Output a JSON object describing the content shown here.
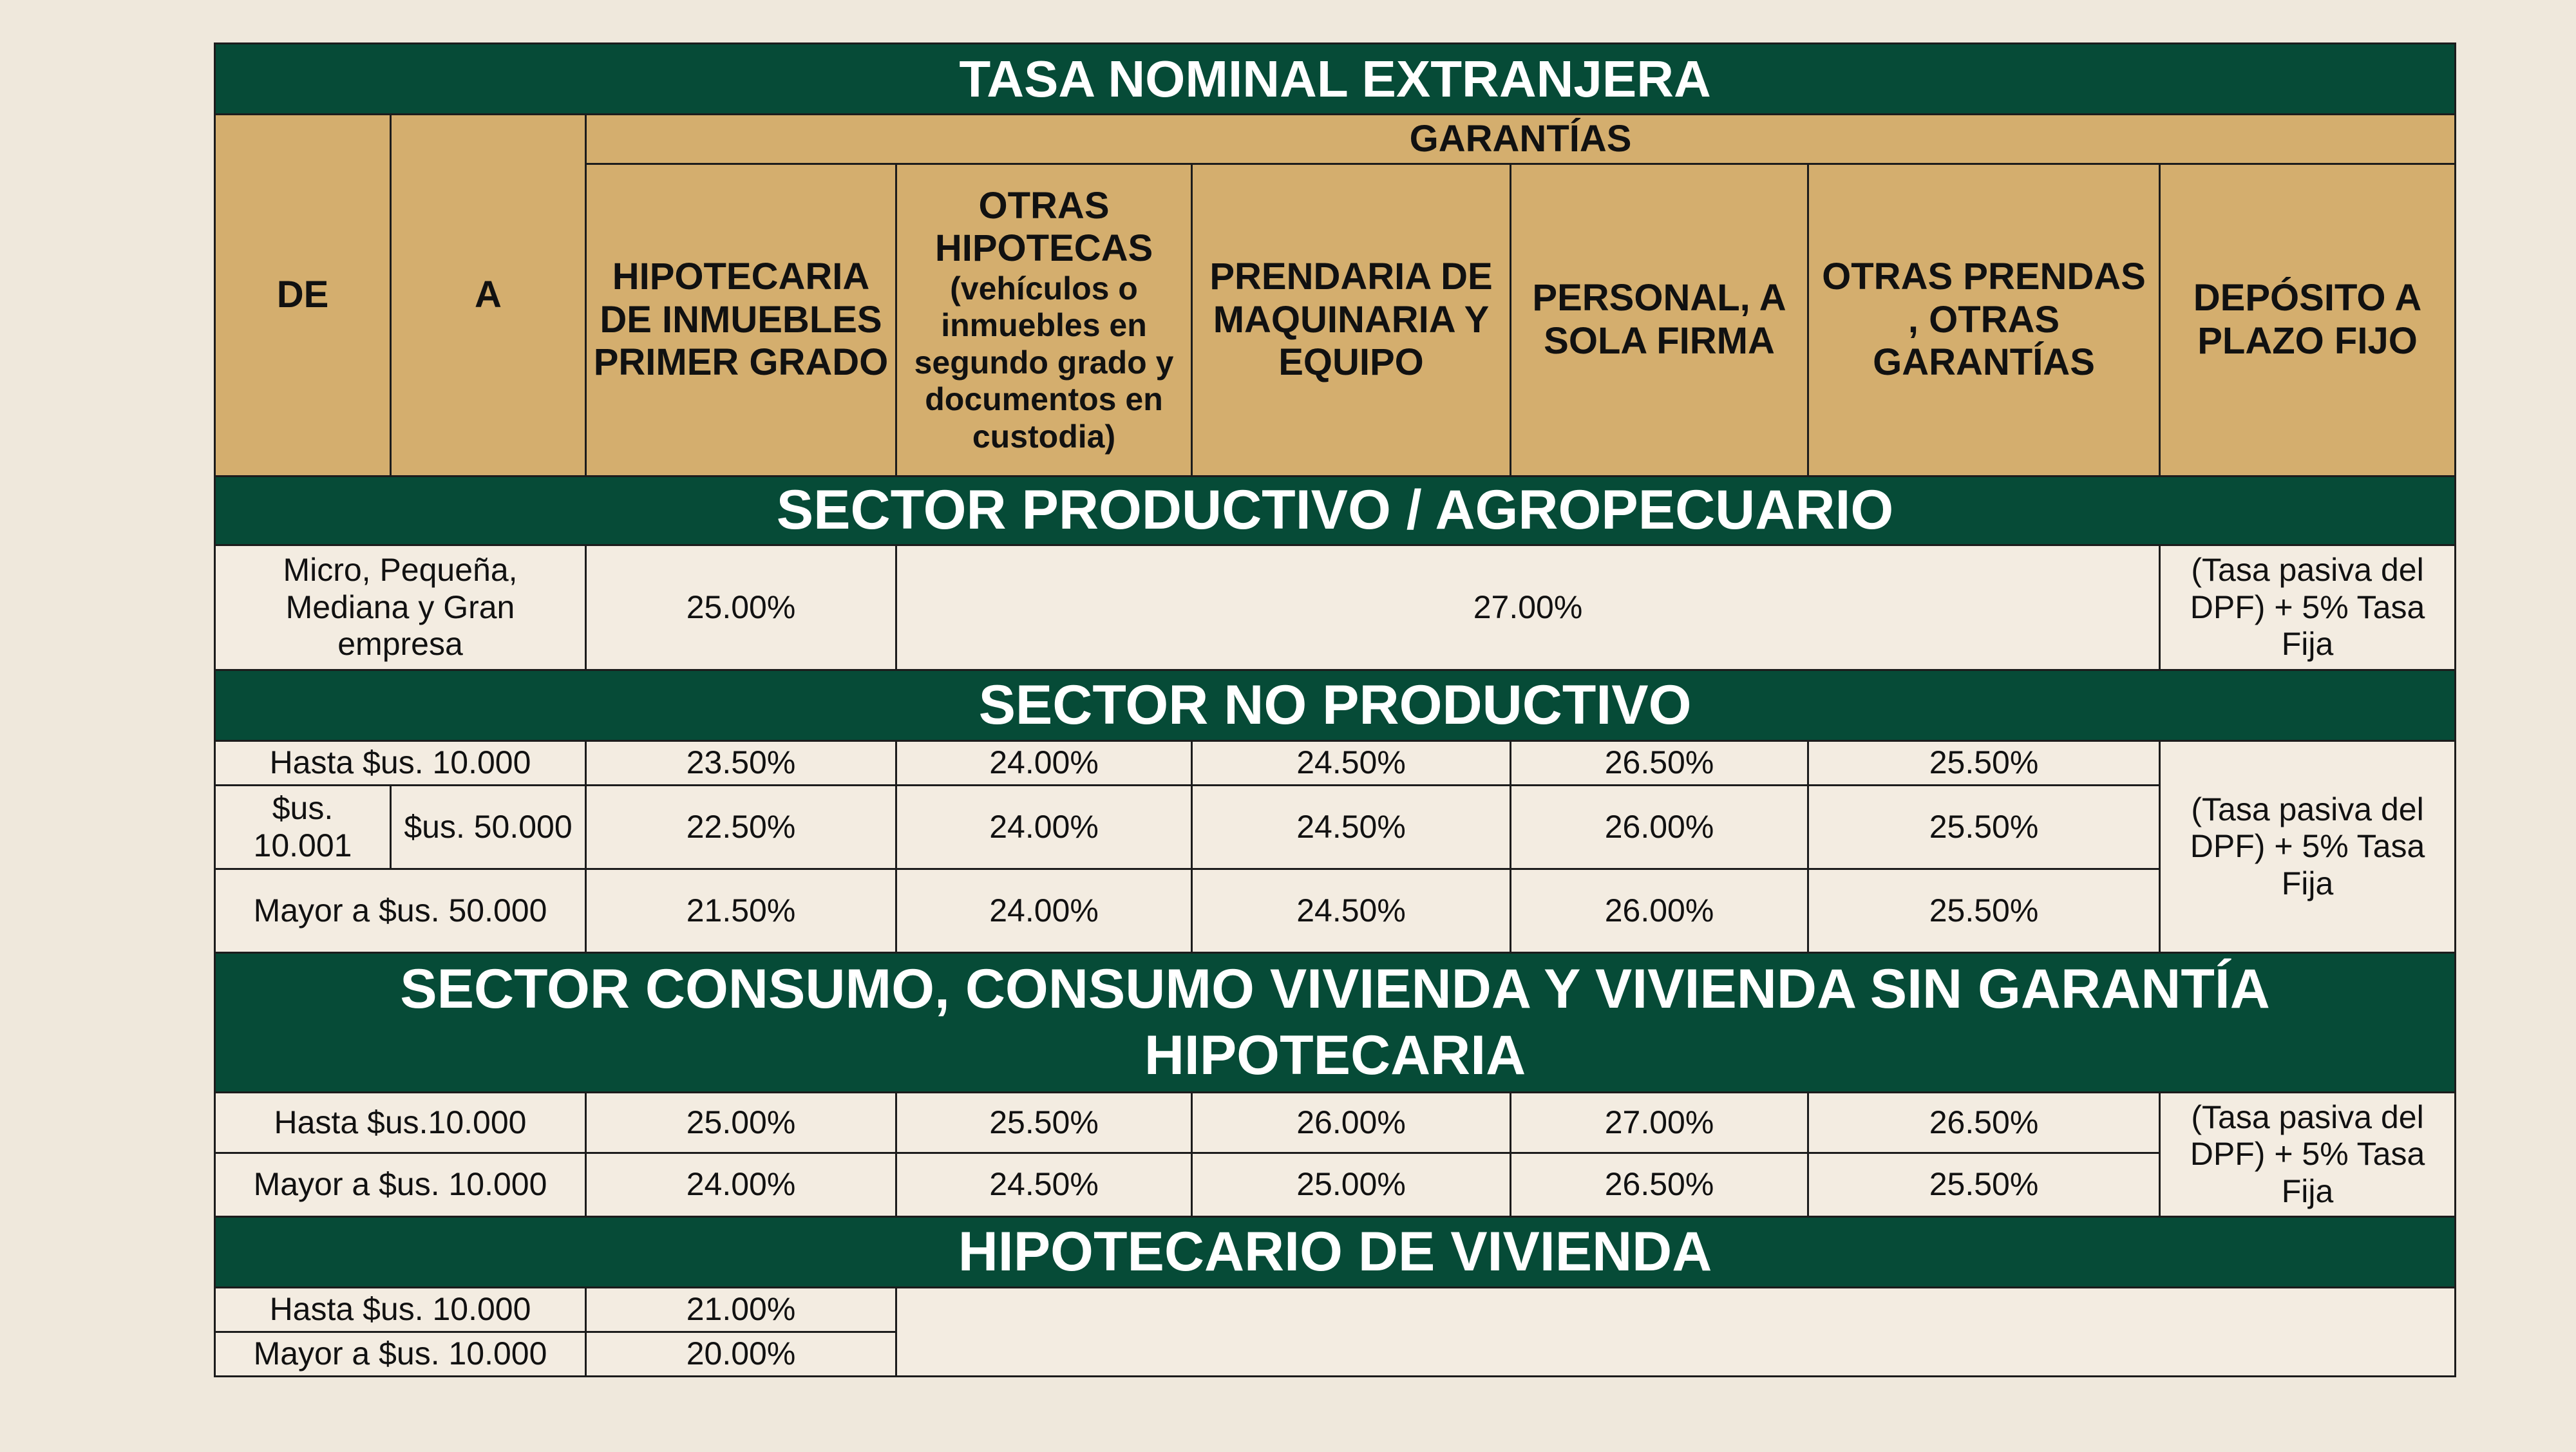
{
  "title": "TASA NOMINAL EXTRANJERA",
  "header": {
    "de": "DE",
    "a": "A",
    "garantias": "GARANTÍAS",
    "columns": [
      "HIPOTECARIA DE INMUEBLES PRIMER GRADO",
      "OTRAS HIPOTECAS",
      "PRENDARIA DE MAQUINARIA Y EQUIPO",
      "PERSONAL, A SOLA FIRMA",
      "OTRAS PRENDAS , OTRAS GARANTÍAS",
      "DEPÓSITO A PLAZO FIJO"
    ],
    "columns_note": "(vehículos o inmuebles en segundo grado y documentos en custodia)"
  },
  "sections": [
    {
      "title": "SECTOR PRODUCTIVO / AGROPECUARIO",
      "rows": [
        {
          "label": "Micro, Pequeña, Mediana y Gran empresa",
          "rates": [
            "25.00%",
            "27.00%"
          ]
        }
      ],
      "deposito": "(Tasa pasiva del DPF) + 5% Tasa Fija"
    },
    {
      "title": "SECTOR NO PRODUCTIVO",
      "rows": [
        {
          "label": "Hasta $us. 10.000",
          "rates": [
            "23.50%",
            "24.00%",
            "24.50%",
            "26.50%",
            "25.50%"
          ]
        },
        {
          "de": "$us. 10.001",
          "a": "$us. 50.000",
          "rates": [
            "22.50%",
            "24.00%",
            "24.50%",
            "26.00%",
            "25.50%"
          ]
        },
        {
          "label": "Mayor a $us. 50.000",
          "rates": [
            "21.50%",
            "24.00%",
            "24.50%",
            "26.00%",
            "25.50%"
          ]
        }
      ],
      "deposito": "(Tasa pasiva del DPF) + 5% Tasa Fija"
    },
    {
      "title": "SECTOR CONSUMO, CONSUMO VIVIENDA Y VIVIENDA SIN GARANTÍA HIPOTECARIA",
      "rows": [
        {
          "label": "Hasta $us.10.000",
          "rates": [
            "25.00%",
            "25.50%",
            "26.00%",
            "27.00%",
            "26.50%"
          ]
        },
        {
          "label": "Mayor a $us. 10.000",
          "rates": [
            "24.00%",
            "24.50%",
            "25.00%",
            "26.50%",
            "25.50%"
          ]
        }
      ],
      "deposito": "(Tasa pasiva del DPF) + 5% Tasa Fija"
    },
    {
      "title": "HIPOTECARIO DE VIVIENDA",
      "rows": [
        {
          "label": "Hasta $us. 10.000",
          "rates": [
            "21.00%"
          ]
        },
        {
          "label": "Mayor a $us. 10.000",
          "rates": [
            "20.00%"
          ]
        }
      ]
    }
  ]
}
